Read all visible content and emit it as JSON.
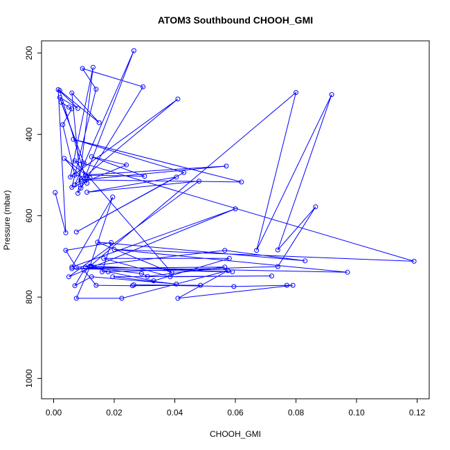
{
  "chart_data": {
    "type": "line",
    "title": "ATOM3 Southbound CHOOH_GMI",
    "xlabel": "CHOOH_GMI",
    "ylabel": "Pressure (mbar)",
    "xlim": [
      -0.004,
      0.124
    ],
    "ylim": [
      1050,
      170
    ],
    "x_ticks": [
      0.0,
      0.02,
      0.04,
      0.06,
      0.08,
      0.1,
      0.12
    ],
    "x_tick_labels": [
      "0.00",
      "0.02",
      "0.04",
      "0.06",
      "0.08",
      "0.10",
      "0.12"
    ],
    "y_ticks": [
      200,
      400,
      600,
      800,
      1000
    ],
    "y_tick_labels": [
      "200",
      "400",
      "600",
      "800",
      "1000"
    ],
    "grid": false,
    "legend": "none",
    "colors": {
      "series": "#0000ff",
      "axes": "#000000"
    },
    "series": [
      {
        "x": [
          0.0005,
          0.004,
          0.0015,
          0.008,
          0.002,
          0.01,
          0.0025,
          0.005,
          0.006,
          0.003,
          0.007,
          0.012,
          0.0035,
          0.011,
          0.002,
          0.015,
          0.006,
          0.009,
          0.0265,
          0.007,
          0.041,
          0.0055,
          0.013,
          0.008,
          0.0295,
          0.0095,
          0.014,
          0.006,
          0.024,
          0.0125,
          0.03,
          0.0105,
          0.057,
          0.009,
          0.062,
          0.0065,
          0.043,
          0.0075,
          0.0405,
          0.011,
          0.048,
          0.005,
          0.06,
          0.006,
          0.0195,
          0.012,
          0.08,
          0.067,
          0.0918,
          0.074,
          0.0865,
          0.074,
          0.016,
          0.019,
          0.004,
          0.0075,
          0.0565,
          0.083,
          0.0145,
          0.039,
          0.007,
          0.119,
          0.02,
          0.097,
          0.0105,
          0.029,
          0.031,
          0.0565,
          0.006,
          0.059,
          0.0125,
          0.018,
          0.033,
          0.058,
          0.0165,
          0.0385,
          0.072,
          0.0195,
          0.0405,
          0.0125,
          0.007,
          0.01,
          0.014,
          0.026,
          0.0485,
          0.0265,
          0.0595,
          0.077,
          0.079,
          0.041,
          0.0575,
          0.0225,
          0.0075,
          0.012
        ],
        "y": [
          543,
          642,
          290,
          336,
          309,
          471,
          321,
          333,
          337,
          376,
          500,
          507,
          459,
          520,
          292,
          371,
          298,
          532,
          194,
          524,
          313,
          505,
          235,
          545,
          283,
          238,
          289,
          530,
          475,
          455,
          503,
          500,
          478,
          512,
          517,
          412,
          494,
          640,
          505,
          542,
          515,
          750,
          583,
          726,
          554,
          724,
          297,
          685,
          302,
          684,
          578,
          725,
          738,
          666,
          685,
          727,
          685,
          711,
          665,
          740,
          465,
          712,
          683,
          739,
          726,
          742,
          749,
          726,
          730,
          738,
          724,
          738,
          760,
          705,
          705,
          750,
          748,
          750,
          768,
          750,
          772,
          734,
          771,
          772,
          771,
          770,
          774,
          771,
          771,
          803,
          735,
          803,
          803,
          725
        ]
      }
    ]
  }
}
